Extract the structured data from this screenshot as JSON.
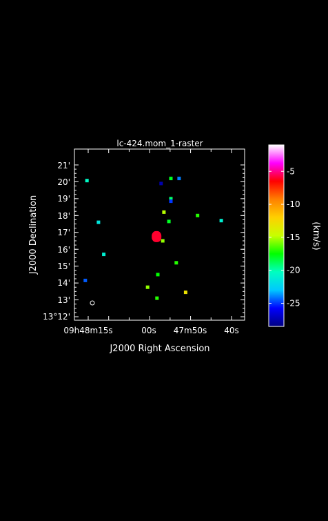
{
  "chart_data": {
    "type": "heatmap",
    "title": "lc-424.mom_1-raster",
    "xlabel": "J2000 Right Ascension",
    "ylabel": "J2000 Declination",
    "x_ticks": [
      {
        "label": "09h48m15s"
      },
      {
        "label": "00s"
      },
      {
        "label": "47m50s"
      },
      {
        "label": "40s"
      }
    ],
    "y_ticks": [
      {
        "label": "13°12'"
      },
      {
        "label": "13'"
      },
      {
        "label": "14'"
      },
      {
        "label": "15'"
      },
      {
        "label": "16'"
      },
      {
        "label": "17'"
      },
      {
        "label": "18'"
      },
      {
        "label": "19'"
      },
      {
        "label": "20'"
      },
      {
        "label": "21'"
      }
    ],
    "colorbar": {
      "label": "(km/s)",
      "range": [
        -28.5,
        -1.0
      ],
      "ticks": [
        -5,
        -10,
        -15,
        -20,
        -25
      ],
      "colormap": [
        "#000080",
        "#0000ff",
        "#00c8ff",
        "#00ffc0",
        "#00ff00",
        "#c8ff00",
        "#ffd000",
        "#ff8000",
        "#ff0000",
        "#ff00ff",
        "#ffffff"
      ]
    },
    "points": [
      {
        "ra": "09h48m15.3s",
        "dec": "13°20.07'",
        "v": -20.5
      },
      {
        "ra": "09h47m57.2s",
        "dec": "13°19.90'",
        "v": -27.5
      },
      {
        "ra": "09h47m54.8s",
        "dec": "13°20.20'",
        "v": -18.0
      },
      {
        "ra": "09h47m52.8s",
        "dec": "13°20.20'",
        "v": -24.0
      },
      {
        "ra": "09h47m54.8s",
        "dec": "13°19.00'",
        "v": -19.0
      },
      {
        "ra": "09h47m54.8s",
        "dec": "13°18.85'",
        "v": -25.0
      },
      {
        "ra": "09h47m56.5s",
        "dec": "13°18.20'",
        "v": -15.0
      },
      {
        "ra": "09h48m12.5s",
        "dec": "13°17.60'",
        "v": -21.5
      },
      {
        "ra": "09h47m55.3s",
        "dec": "13°17.65'",
        "v": -18.0
      },
      {
        "ra": "09h47m48.3s",
        "dec": "13°18.00'",
        "v": -17.0
      },
      {
        "ra": "09h47m42.5s",
        "dec": "13°17.70'",
        "v": -21.0
      },
      {
        "ra": "09h47m58.3s",
        "dec": "13°16.75'",
        "v": -6.0
      },
      {
        "ra": "09h47m56.8s",
        "dec": "13°16.50'",
        "v": -15.5
      },
      {
        "ra": "09h48m11.2s",
        "dec": "13°15.70'",
        "v": -21.0
      },
      {
        "ra": "09h47m53.5s",
        "dec": "13°15.20'",
        "v": -17.0
      },
      {
        "ra": "09h47m58.0s",
        "dec": "13°14.50'",
        "v": -17.5
      },
      {
        "ra": "09h48m15.7s",
        "dec": "13°14.15'",
        "v": -24.5
      },
      {
        "ra": "09h48m00.5s",
        "dec": "13°13.75'",
        "v": -15.5
      },
      {
        "ra": "09h47m51.2s",
        "dec": "13°13.45'",
        "v": -13.0
      },
      {
        "ra": "09h47m58.2s",
        "dec": "13°13.10'",
        "v": -17.0
      }
    ]
  }
}
